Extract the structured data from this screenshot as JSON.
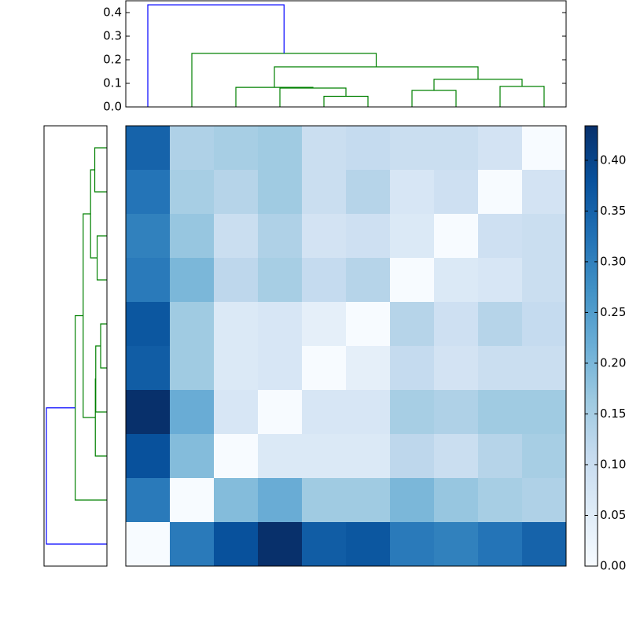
{
  "chart_data": {
    "type": "clustermap",
    "dendrogram": {
      "ylim": [
        0,
        0.45
      ],
      "yticks": [
        {
          "value": 0,
          "label": "0.0"
        },
        {
          "value": 0.1,
          "label": "0.1"
        },
        {
          "value": 0.2,
          "label": "0.2"
        },
        {
          "value": 0.3,
          "label": "0.3"
        },
        {
          "value": 0.4,
          "label": "0.4"
        }
      ],
      "tree": {
        "height": 0.433,
        "color": "#0000ff",
        "children": [
          0,
          {
            "height": 0.227,
            "color": "#008000",
            "children": [
              1,
              {
                "height": 0.17,
                "color": "#008000",
                "children": [
                  {
                    "height": 0.083,
                    "color": "#008000",
                    "children": [
                      2,
                      {
                        "height": 0.08,
                        "color": "#008000",
                        "children": [
                          3,
                          {
                            "height": 0.045,
                            "color": "#008000",
                            "children": [
                              4,
                              5
                            ]
                          }
                        ]
                      }
                    ]
                  },
                  {
                    "height": 0.117,
                    "color": "#008000",
                    "children": [
                      {
                        "height": 0.07,
                        "color": "#008000",
                        "children": [
                          6,
                          7
                        ]
                      },
                      {
                        "height": 0.087,
                        "color": "#008000",
                        "children": [
                          8,
                          9
                        ]
                      }
                    ]
                  }
                ]
              }
            ]
          }
        ]
      }
    },
    "values": [
      [
        0.35,
        0.14,
        0.15,
        0.16,
        0.1,
        0.11,
        0.1,
        0.1,
        0.08,
        0
      ],
      [
        0.32,
        0.15,
        0.13,
        0.16,
        0.1,
        0.13,
        0.07,
        0.09,
        0,
        0.08
      ],
      [
        0.3,
        0.17,
        0.1,
        0.14,
        0.08,
        0.09,
        0.06,
        0,
        0.09,
        0.1
      ],
      [
        0.31,
        0.2,
        0.12,
        0.15,
        0.11,
        0.13,
        0,
        0.06,
        0.07,
        0.1
      ],
      [
        0.37,
        0.16,
        0.06,
        0.07,
        0.04,
        0,
        0.13,
        0.09,
        0.13,
        0.11
      ],
      [
        0.36,
        0.16,
        0.06,
        0.07,
        0,
        0.04,
        0.11,
        0.08,
        0.1,
        0.1
      ],
      [
        0.434,
        0.22,
        0.07,
        0,
        0.07,
        0.07,
        0.15,
        0.14,
        0.16,
        0.16
      ],
      [
        0.38,
        0.19,
        0,
        0.06,
        0.06,
        0.06,
        0.12,
        0.1,
        0.13,
        0.15
      ],
      [
        0.31,
        0,
        0.19,
        0.22,
        0.16,
        0.16,
        0.2,
        0.17,
        0.15,
        0.14
      ],
      [
        0,
        0.31,
        0.38,
        0.434,
        0.36,
        0.37,
        0.31,
        0.3,
        0.32,
        0.35
      ]
    ],
    "colormap": "Blues",
    "clim": [
      0,
      0.434
    ],
    "colorbar_ticks": [
      {
        "value": 0,
        "label": "0.00"
      },
      {
        "value": 0.05,
        "label": "0.05"
      },
      {
        "value": 0.1,
        "label": "0.10"
      },
      {
        "value": 0.15,
        "label": "0.15"
      },
      {
        "value": 0.2,
        "label": "0.20"
      },
      {
        "value": 0.25,
        "label": "0.25"
      },
      {
        "value": 0.3,
        "label": "0.30"
      },
      {
        "value": 0.35,
        "label": "0.35"
      },
      {
        "value": 0.4,
        "label": "0.40"
      }
    ]
  }
}
